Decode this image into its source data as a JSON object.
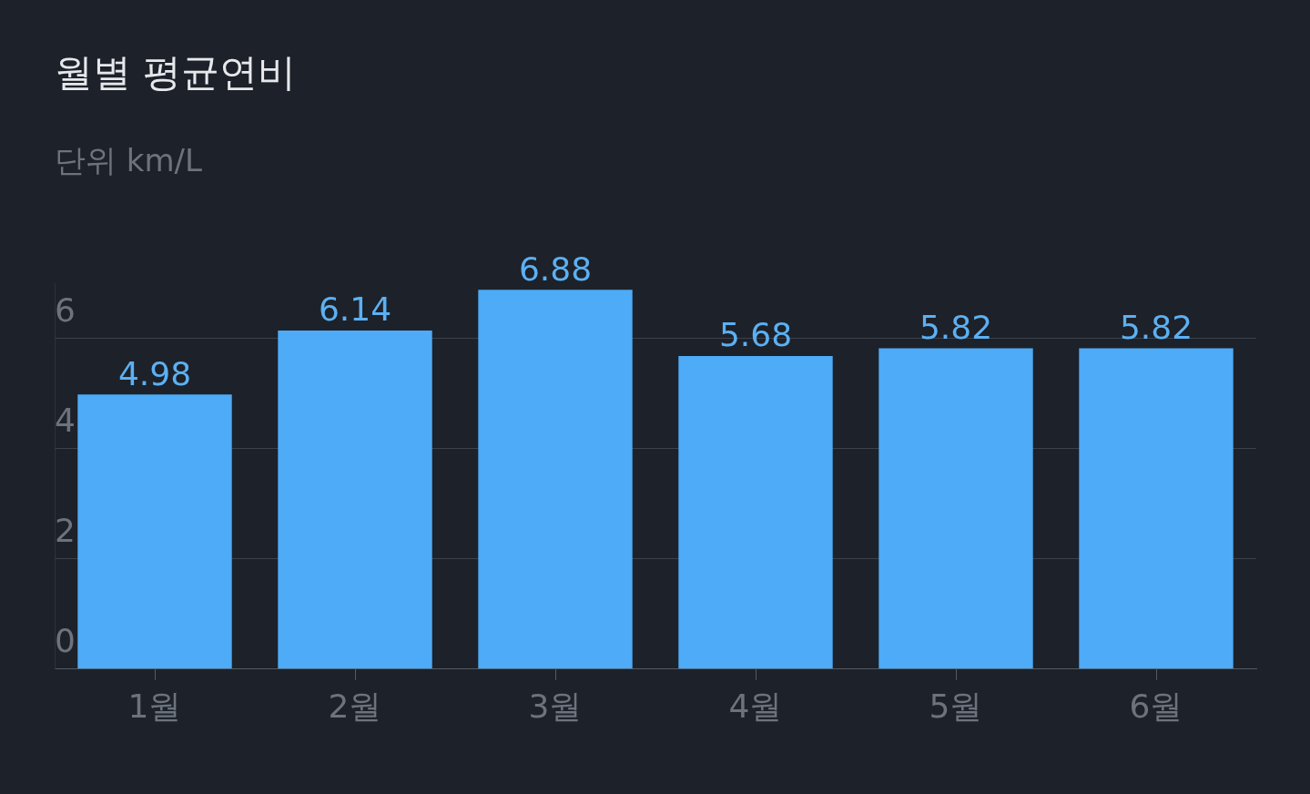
{
  "chart_data": {
    "type": "bar",
    "title": "월별 평균연비",
    "subtitle": "단위 km/L",
    "categories": [
      "1월",
      "2월",
      "3월",
      "4월",
      "5월",
      "6월"
    ],
    "values": [
      4.98,
      6.14,
      6.88,
      5.68,
      5.82,
      5.82
    ],
    "color": "#4dabf7",
    "ylim": [
      0,
      7
    ],
    "yticks": [
      0,
      2,
      4,
      6
    ],
    "grid": "y",
    "legend": false,
    "data_labels": true
  }
}
